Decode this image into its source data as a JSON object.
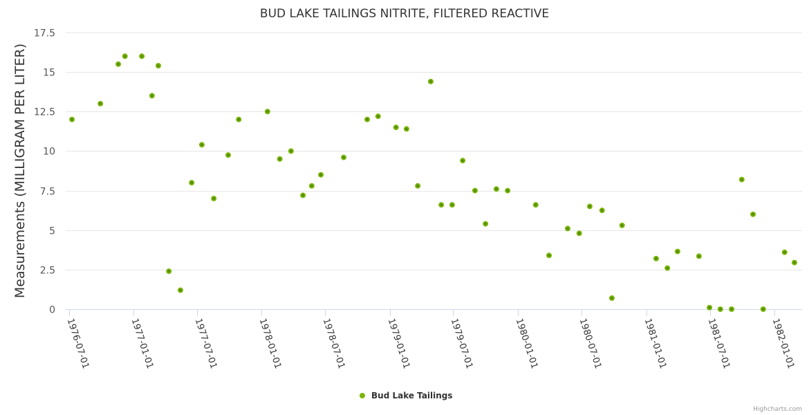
{
  "chart_data": {
    "type": "scatter",
    "title": "BUD LAKE TAILINGS NITRITE, FILTERED REACTIVE",
    "xlabel": "",
    "ylabel": "Measurements (MILLIGRAM PER LITER)",
    "ylim": [
      0,
      17.5
    ],
    "xlim": [
      "1976-07-01",
      "1982-03-10"
    ],
    "yticks": [
      "0",
      "2.5",
      "5",
      "7.5",
      "10",
      "12.5",
      "15",
      "17.5"
    ],
    "xticks": [
      "1976-07-01",
      "1977-01-01",
      "1977-07-01",
      "1978-01-01",
      "1978-07-01",
      "1979-01-01",
      "1979-07-01",
      "1980-01-01",
      "1980-07-01",
      "1981-01-01",
      "1981-07-01",
      "1982-01-01"
    ],
    "grid": true,
    "legend_position": "bottom-center",
    "series": [
      {
        "name": "Bud Lake Tailings",
        "color": "#7cb50a",
        "points": [
          [
            "1976-07-10",
            12.0
          ],
          [
            "1976-09-29",
            13.0
          ],
          [
            "1976-11-19",
            15.5
          ],
          [
            "1976-12-08",
            16.0
          ],
          [
            "1977-01-25",
            16.0
          ],
          [
            "1977-02-23",
            13.5
          ],
          [
            "1977-03-13",
            15.4
          ],
          [
            "1977-04-12",
            2.4
          ],
          [
            "1977-05-15",
            1.2
          ],
          [
            "1977-06-16",
            8.0
          ],
          [
            "1977-07-15",
            10.4
          ],
          [
            "1977-08-18",
            7.0
          ],
          [
            "1977-09-28",
            9.75
          ],
          [
            "1977-10-28",
            12.0
          ],
          [
            "1978-01-18",
            12.5
          ],
          [
            "1978-02-22",
            9.5
          ],
          [
            "1978-03-26",
            10.0
          ],
          [
            "1978-04-29",
            7.2
          ],
          [
            "1978-05-24",
            7.8
          ],
          [
            "1978-06-19",
            8.5
          ],
          [
            "1978-08-23",
            9.6
          ],
          [
            "1978-10-29",
            12.0
          ],
          [
            "1978-11-29",
            12.2
          ],
          [
            "1979-01-19",
            11.5
          ],
          [
            "1979-02-18",
            11.4
          ],
          [
            "1979-03-22",
            7.8
          ],
          [
            "1979-04-28",
            14.4
          ],
          [
            "1979-05-28",
            6.6
          ],
          [
            "1979-06-28",
            6.6
          ],
          [
            "1979-07-28",
            9.4
          ],
          [
            "1979-09-01",
            7.5
          ],
          [
            "1979-10-01",
            5.4
          ],
          [
            "1979-11-01",
            7.6
          ],
          [
            "1979-12-03",
            7.5
          ],
          [
            "1980-02-21",
            6.6
          ],
          [
            "1980-03-30",
            3.4
          ],
          [
            "1980-05-22",
            5.1
          ],
          [
            "1980-06-24",
            4.8
          ],
          [
            "1980-07-24",
            6.5
          ],
          [
            "1980-08-28",
            6.25
          ],
          [
            "1980-09-25",
            0.7
          ],
          [
            "1980-10-24",
            5.3
          ],
          [
            "1981-01-29",
            3.2
          ],
          [
            "1981-03-02",
            2.6
          ],
          [
            "1981-03-31",
            3.65
          ],
          [
            "1981-05-31",
            3.35
          ],
          [
            "1981-06-30",
            0.1
          ],
          [
            "1981-07-31",
            0.0
          ],
          [
            "1981-09-01",
            0.0
          ],
          [
            "1981-09-30",
            8.2
          ],
          [
            "1981-11-01",
            6.0
          ],
          [
            "1981-11-30",
            0.0
          ],
          [
            "1982-01-30",
            3.6
          ],
          [
            "1982-02-27",
            2.95
          ]
        ]
      }
    ]
  },
  "credits": "Highcharts.com"
}
